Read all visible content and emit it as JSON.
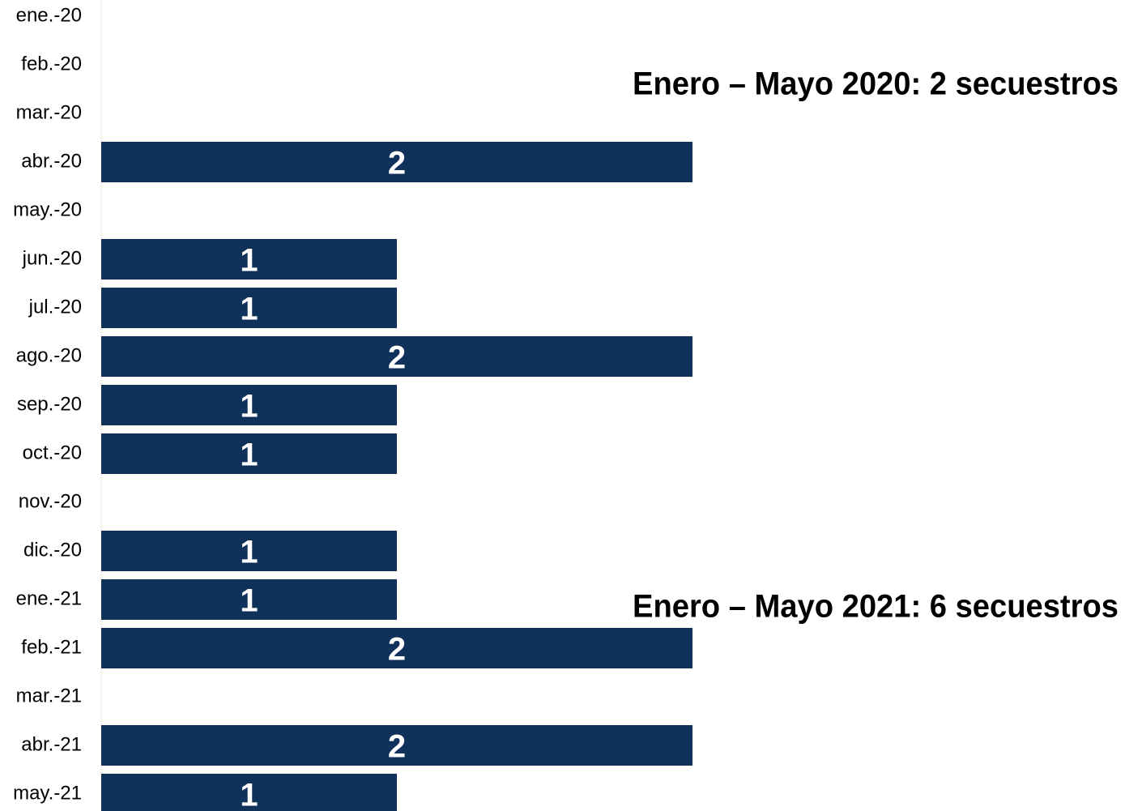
{
  "chart_data": {
    "type": "hbar",
    "categories": [
      "ene.-20",
      "feb.-20",
      "mar.-20",
      "abr.-20",
      "may.-20",
      "jun.-20",
      "jul.-20",
      "ago.-20",
      "sep.-20",
      "oct.-20",
      "nov.-20",
      "dic.-20",
      "ene.-21",
      "feb.-21",
      "mar.-21",
      "abr.-21",
      "may.-21"
    ],
    "values": [
      0,
      0,
      0,
      2,
      0,
      1,
      1,
      2,
      1,
      1,
      0,
      1,
      1,
      2,
      0,
      2,
      1
    ],
    "color": "#10315a",
    "xlim": [
      0,
      2
    ],
    "annotations": [
      "Enero – Mayo 2020: 2 secuestros",
      "Enero – Mayo 2021: 6 secuestros"
    ]
  }
}
